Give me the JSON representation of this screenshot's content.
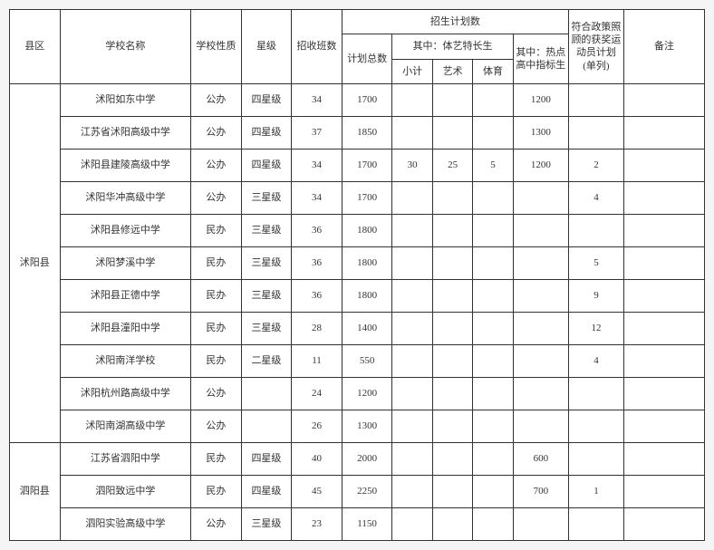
{
  "colors": {
    "border": "#333333",
    "text": "#333333",
    "background": "#ffffff",
    "page_bg": "#f5f5f5"
  },
  "fontsize": {
    "cell": 11
  },
  "headers": {
    "county": "县区",
    "school": "学校名称",
    "nature": "学校性质",
    "star": "星级",
    "classes": "招收班数",
    "plan_group": "招生计划数",
    "total": "计划总数",
    "talent_group": "其中：体艺特长生",
    "subtotal": "小计",
    "art": "艺术",
    "sport": "体育",
    "hot": "其中：热点高中指标生",
    "award": "符合政策照顾的获奖运动员计划(单列)",
    "note": "备注"
  },
  "counties": [
    {
      "name": "沭阳县",
      "rows": [
        {
          "school": "沭阳如东中学",
          "nature": "公办",
          "star": "四星级",
          "classes": "34",
          "total": "1700",
          "sub": "",
          "art": "",
          "sport": "",
          "hot": "1200",
          "award": "",
          "note": ""
        },
        {
          "school": "江苏省沭阳高级中学",
          "nature": "公办",
          "star": "四星级",
          "classes": "37",
          "total": "1850",
          "sub": "",
          "art": "",
          "sport": "",
          "hot": "1300",
          "award": "",
          "note": ""
        },
        {
          "school": "沭阳县建陵高级中学",
          "nature": "公办",
          "star": "四星级",
          "classes": "34",
          "total": "1700",
          "sub": "30",
          "art": "25",
          "sport": "5",
          "hot": "1200",
          "award": "2",
          "note": ""
        },
        {
          "school": "沭阳华冲高级中学",
          "nature": "公办",
          "star": "三星级",
          "classes": "34",
          "total": "1700",
          "sub": "",
          "art": "",
          "sport": "",
          "hot": "",
          "award": "4",
          "note": ""
        },
        {
          "school": "沭阳县修远中学",
          "nature": "民办",
          "star": "三星级",
          "classes": "36",
          "total": "1800",
          "sub": "",
          "art": "",
          "sport": "",
          "hot": "",
          "award": "",
          "note": ""
        },
        {
          "school": "沭阳梦溪中学",
          "nature": "民办",
          "star": "三星级",
          "classes": "36",
          "total": "1800",
          "sub": "",
          "art": "",
          "sport": "",
          "hot": "",
          "award": "5",
          "note": ""
        },
        {
          "school": "沭阳县正德中学",
          "nature": "民办",
          "star": "三星级",
          "classes": "36",
          "total": "1800",
          "sub": "",
          "art": "",
          "sport": "",
          "hot": "",
          "award": "9",
          "note": ""
        },
        {
          "school": "沭阳县潼阳中学",
          "nature": "民办",
          "star": "三星级",
          "classes": "28",
          "total": "1400",
          "sub": "",
          "art": "",
          "sport": "",
          "hot": "",
          "award": "12",
          "note": ""
        },
        {
          "school": "沭阳南洋学校",
          "nature": "民办",
          "star": "二星级",
          "classes": "11",
          "total": "550",
          "sub": "",
          "art": "",
          "sport": "",
          "hot": "",
          "award": "4",
          "note": ""
        },
        {
          "school": "沭阳杭州路高级中学",
          "nature": "公办",
          "star": "",
          "classes": "24",
          "total": "1200",
          "sub": "",
          "art": "",
          "sport": "",
          "hot": "",
          "award": "",
          "note": ""
        },
        {
          "school": "沭阳南湖高级中学",
          "nature": "公办",
          "star": "",
          "classes": "26",
          "total": "1300",
          "sub": "",
          "art": "",
          "sport": "",
          "hot": "",
          "award": "",
          "note": ""
        }
      ]
    },
    {
      "name": "泗阳县",
      "rows": [
        {
          "school": "江苏省泗阳中学",
          "nature": "民办",
          "star": "四星级",
          "classes": "40",
          "total": "2000",
          "sub": "",
          "art": "",
          "sport": "",
          "hot": "600",
          "award": "",
          "note": ""
        },
        {
          "school": "泗阳致远中学",
          "nature": "民办",
          "star": "四星级",
          "classes": "45",
          "total": "2250",
          "sub": "",
          "art": "",
          "sport": "",
          "hot": "700",
          "award": "1",
          "note": ""
        },
        {
          "school": "泗阳实验高级中学",
          "nature": "公办",
          "star": "三星级",
          "classes": "23",
          "total": "1150",
          "sub": "",
          "art": "",
          "sport": "",
          "hot": "",
          "award": "",
          "note": ""
        }
      ]
    }
  ]
}
